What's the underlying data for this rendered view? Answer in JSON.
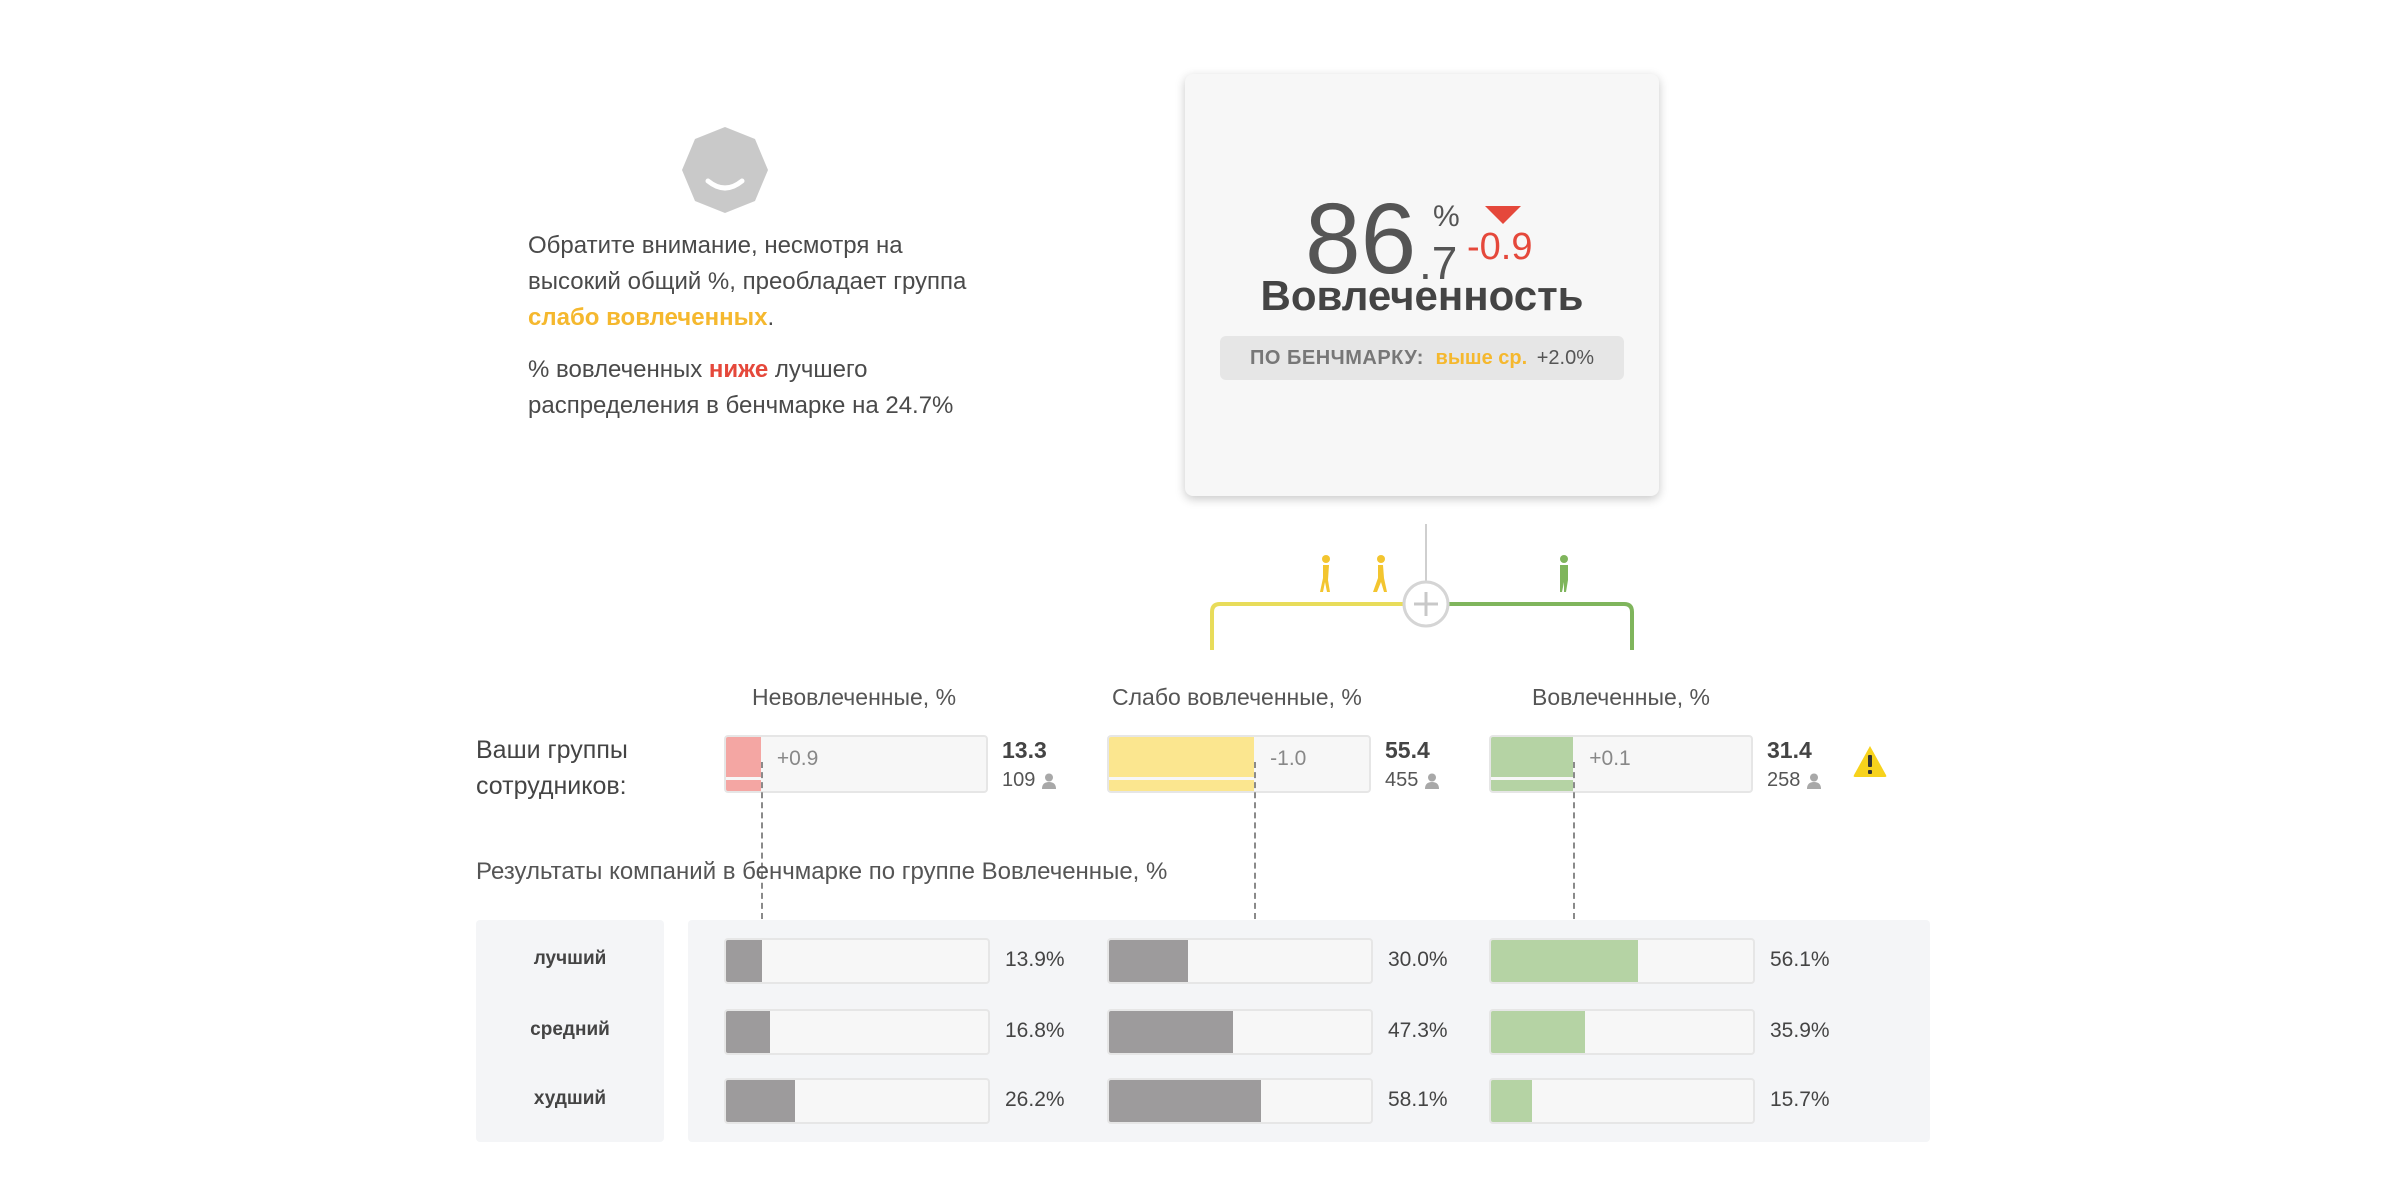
{
  "insight": {
    "p1_before": "Обратите внимание, несмотря на высокий общий %, преобладает группа ",
    "p1_highlight": "слабо вовлеченных",
    "p1_after": ".",
    "p2_before": "% вовлеченных ",
    "p2_highlight": "ниже",
    "p2_after": " лучшего распределения в бенчмарке на 24.7%"
  },
  "kpi": {
    "value_int": "86",
    "value_dec": ".7",
    "unit": "%",
    "delta": "-0.9",
    "title": "Вовлеченность",
    "bench_label": "ПО БЕНЧМАРКУ:",
    "bench_status": "выше ср.",
    "bench_delta": "+2.0%"
  },
  "groups_label": "Ваши группы сотрудников:",
  "benchmark_title": "Результаты компаний в бенчмарке по группе Вовлеченные, %",
  "colors": {
    "disengaged": "#f4a6a3",
    "weakly": "#fbe68f",
    "engaged": "#b5d3a4",
    "bench_bar": "#9d9b9c",
    "tree_yellow": "#e8dc5a",
    "tree_green": "#7fb55c",
    "person_yellow": "#f3c52f",
    "person_green": "#7fb55c",
    "warning": "#f7d21c"
  },
  "chart_data": {
    "type": "bar",
    "title": "",
    "categories": [
      "Невовлеченные, %",
      "Слабо вовлеченные, %",
      "Вовлеченные, %"
    ],
    "ylim": [
      0,
      100
    ],
    "your_groups": [
      {
        "value": 13.3,
        "value_label": "13.3",
        "delta": "+0.9",
        "count": "109"
      },
      {
        "value": 55.4,
        "value_label": "55.4",
        "delta": "-1.0",
        "count": "455"
      },
      {
        "value": 31.4,
        "value_label": "31.4",
        "delta": "+0.1",
        "count": "258"
      }
    ],
    "series": [
      {
        "name": "лучший",
        "values": [
          13.9,
          30.0,
          56.1
        ],
        "labels": [
          "13.9%",
          "30.0%",
          "56.1%"
        ]
      },
      {
        "name": "средний",
        "values": [
          16.8,
          47.3,
          35.9
        ],
        "labels": [
          "16.8%",
          "47.3%",
          "35.9%"
        ]
      },
      {
        "name": "худший",
        "values": [
          26.2,
          58.1,
          15.7
        ],
        "labels": [
          "26.2%",
          "58.1%",
          "15.7%"
        ]
      }
    ]
  }
}
